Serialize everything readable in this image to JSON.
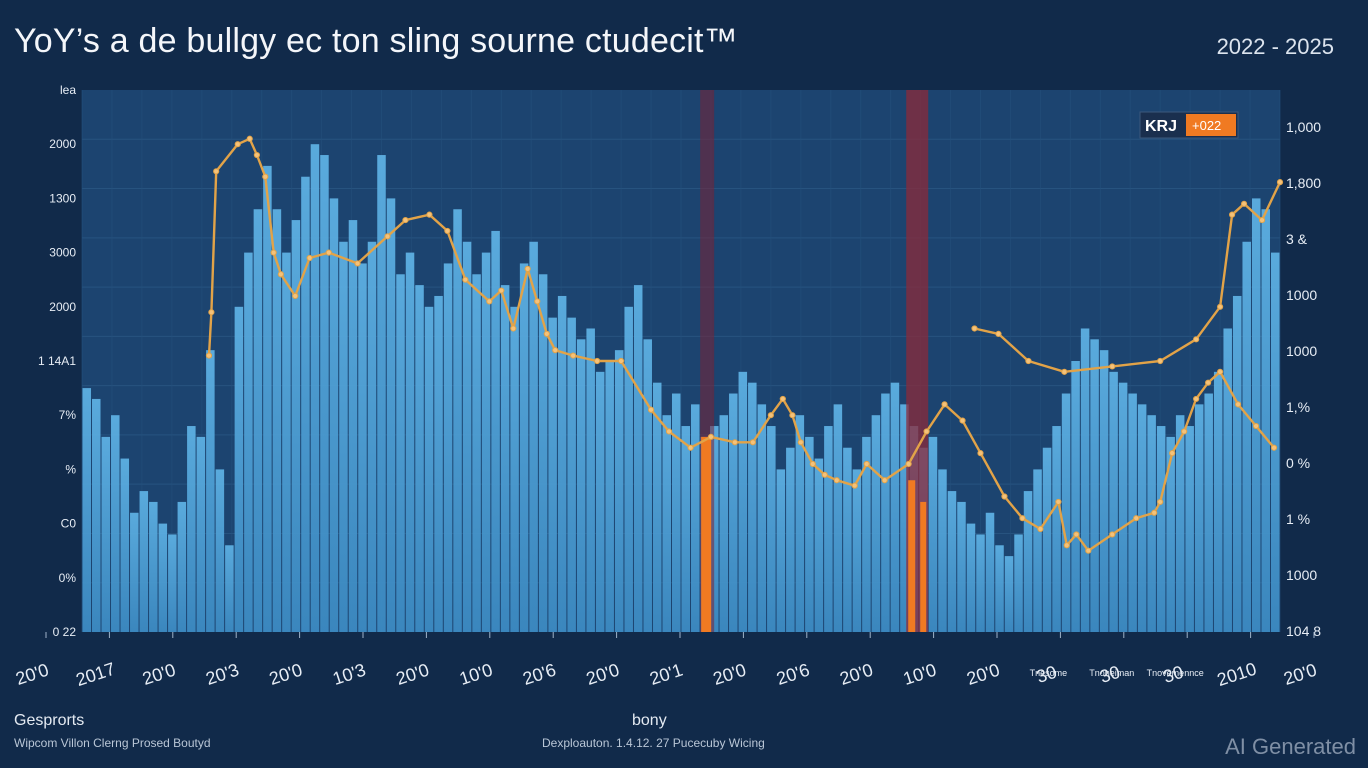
{
  "title": "YoY’s a de bullgy ec ton sling sourne ctudecit™",
  "date_range": "2022 - 2025",
  "footer": {
    "left_title": "Gesprorts",
    "left_subtitle": "Wipcom Villon Clerng Prosed Boutyd",
    "mid_title": "bony",
    "mid_subtitle": "Dexploauton.  1.4.12. 27 Pucecuby Wicing"
  },
  "watermark": "AI Generated",
  "colors": {
    "background": "#112a4a",
    "plot_area": "#1c4470",
    "bars": "#4fa3d6",
    "line": "#e2a348",
    "highlight_orange": "#f07a22",
    "highlight_red": "#8b2a3a",
    "legend_badge": "#f07a22"
  },
  "chart_data": {
    "type": "bar",
    "legend": {
      "label": "KRJ",
      "badge": "+022",
      "position": "top-right"
    },
    "grid": true,
    "y_left_ticks": [
      "lea",
      "2000",
      "1300",
      "3000",
      "2000",
      "1 14A1",
      "7% ",
      "% ",
      "C0 ",
      "0% ",
      "0 22"
    ],
    "y_right_ticks": [
      "1,000",
      "1,800",
      "3 &",
      "1000",
      "1000",
      "1,%",
      "0 %",
      "1 %",
      "1000",
      "104 8"
    ],
    "x_tick_labels": [
      "20'0",
      "2017",
      "20'0",
      "20'3",
      "20'0",
      "10'3",
      "20'0",
      "10'0",
      "20'6",
      "20'0",
      "20'1",
      "20'0",
      "20'6",
      "20'0",
      "10'0",
      "20'0",
      "30",
      "30",
      "30",
      "2010",
      "20'0"
    ],
    "x_tick_sublabels": [
      "",
      "",
      "",
      "",
      "",
      "",
      "",
      "",
      "",
      "",
      "",
      "",
      "",
      "",
      "",
      "",
      "Tnesome",
      "Tnoneiman",
      "Tnovemennce",
      "",
      ""
    ],
    "bar_values": [
      45,
      43,
      36,
      40,
      32,
      22,
      26,
      24,
      20,
      18,
      24,
      38,
      36,
      52,
      30,
      16,
      60,
      70,
      78,
      86,
      78,
      70,
      76,
      84,
      90,
      88,
      80,
      72,
      76,
      68,
      72,
      88,
      80,
      66,
      70,
      64,
      60,
      62,
      68,
      78,
      72,
      66,
      70,
      74,
      64,
      60,
      68,
      72,
      66,
      58,
      62,
      58,
      54,
      56,
      48,
      50,
      52,
      60,
      64,
      54,
      46,
      40,
      44,
      38,
      42,
      36,
      38,
      40,
      44,
      48,
      46,
      42,
      38,
      30,
      34,
      40,
      36,
      32,
      38,
      42,
      34,
      30,
      36,
      40,
      44,
      46,
      42,
      38,
      34,
      36,
      30,
      26,
      24,
      20,
      18,
      22,
      16,
      14,
      18,
      26,
      30,
      34,
      38,
      44,
      50,
      56,
      54,
      52,
      48,
      46,
      44,
      42,
      40,
      38,
      36,
      40,
      38,
      42,
      44,
      48,
      56,
      62,
      72,
      80,
      78,
      70
    ],
    "line": [
      {
        "x": 0.106,
        "y": 51
      },
      {
        "x": 0.108,
        "y": 59
      },
      {
        "x": 0.112,
        "y": 85
      },
      {
        "x": 0.13,
        "y": 90
      },
      {
        "x": 0.14,
        "y": 91
      },
      {
        "x": 0.146,
        "y": 88
      },
      {
        "x": 0.153,
        "y": 84
      },
      {
        "x": 0.16,
        "y": 70
      },
      {
        "x": 0.166,
        "y": 66
      },
      {
        "x": 0.178,
        "y": 62
      },
      {
        "x": 0.19,
        "y": 69
      },
      {
        "x": 0.206,
        "y": 70
      },
      {
        "x": 0.23,
        "y": 68
      },
      {
        "x": 0.255,
        "y": 73
      },
      {
        "x": 0.27,
        "y": 76
      },
      {
        "x": 0.29,
        "y": 77
      },
      {
        "x": 0.305,
        "y": 74
      },
      {
        "x": 0.32,
        "y": 65
      },
      {
        "x": 0.34,
        "y": 61
      },
      {
        "x": 0.35,
        "y": 63
      },
      {
        "x": 0.36,
        "y": 56
      },
      {
        "x": 0.372,
        "y": 67
      },
      {
        "x": 0.38,
        "y": 61
      },
      {
        "x": 0.388,
        "y": 55
      },
      {
        "x": 0.395,
        "y": 52
      },
      {
        "x": 0.41,
        "y": 51
      },
      {
        "x": 0.43,
        "y": 50
      },
      {
        "x": 0.45,
        "y": 50
      },
      {
        "x": 0.475,
        "y": 41
      },
      {
        "x": 0.49,
        "y": 37
      },
      {
        "x": 0.508,
        "y": 34
      },
      {
        "x": 0.525,
        "y": 36
      },
      {
        "x": 0.545,
        "y": 35
      },
      {
        "x": 0.56,
        "y": 35
      },
      {
        "x": 0.575,
        "y": 40
      },
      {
        "x": 0.585,
        "y": 43
      },
      {
        "x": 0.593,
        "y": 40
      },
      {
        "x": 0.6,
        "y": 35
      },
      {
        "x": 0.61,
        "y": 31
      },
      {
        "x": 0.62,
        "y": 29
      },
      {
        "x": 0.63,
        "y": 28
      },
      {
        "x": 0.645,
        "y": 27
      },
      {
        "x": 0.655,
        "y": 31
      },
      {
        "x": 0.67,
        "y": 28
      },
      {
        "x": 0.69,
        "y": 31
      },
      {
        "x": 0.705,
        "y": 37
      },
      {
        "x": 0.72,
        "y": 42
      },
      {
        "x": 0.735,
        "y": 39
      },
      {
        "x": 0.75,
        "y": 33
      },
      {
        "x": 0.77,
        "y": 25
      },
      {
        "x": 0.785,
        "y": 21
      },
      {
        "x": 0.8,
        "y": 19
      },
      {
        "x": 0.815,
        "y": 24
      },
      {
        "x": 0.822,
        "y": 16
      },
      {
        "x": 0.83,
        "y": 18
      },
      {
        "x": 0.84,
        "y": 15
      },
      {
        "x": 0.86,
        "y": 18
      },
      {
        "x": 0.88,
        "y": 21
      },
      {
        "x": 0.895,
        "y": 22
      },
      {
        "x": 0.9,
        "y": 24
      },
      {
        "x": 0.91,
        "y": 33
      },
      {
        "x": 0.92,
        "y": 37
      },
      {
        "x": 0.93,
        "y": 43
      },
      {
        "x": 0.94,
        "y": 46
      },
      {
        "x": 0.95,
        "y": 48
      },
      {
        "x": 0.965,
        "y": 42
      },
      {
        "x": 0.98,
        "y": 38
      },
      {
        "x": 0.995,
        "y": 34
      }
    ],
    "line2": [
      {
        "x": 0.745,
        "y": 56
      },
      {
        "x": 0.765,
        "y": 55
      },
      {
        "x": 0.79,
        "y": 50
      },
      {
        "x": 0.82,
        "y": 48
      },
      {
        "x": 0.86,
        "y": 49
      },
      {
        "x": 0.9,
        "y": 50
      },
      {
        "x": 0.93,
        "y": 54
      },
      {
        "x": 0.95,
        "y": 60
      },
      {
        "x": 0.96,
        "y": 77
      },
      {
        "x": 0.97,
        "y": 79
      },
      {
        "x": 0.985,
        "y": 76
      },
      {
        "x": 1.0,
        "y": 83
      }
    ],
    "highlight_bands": [
      {
        "x": 0.527,
        "color": "orange"
      },
      {
        "x": 0.7,
        "color": "orange"
      },
      {
        "x": 0.708,
        "color": "orange"
      },
      {
        "x": 0.695,
        "color": "red"
      },
      {
        "x": 0.53,
        "color": "red-thin"
      }
    ]
  }
}
